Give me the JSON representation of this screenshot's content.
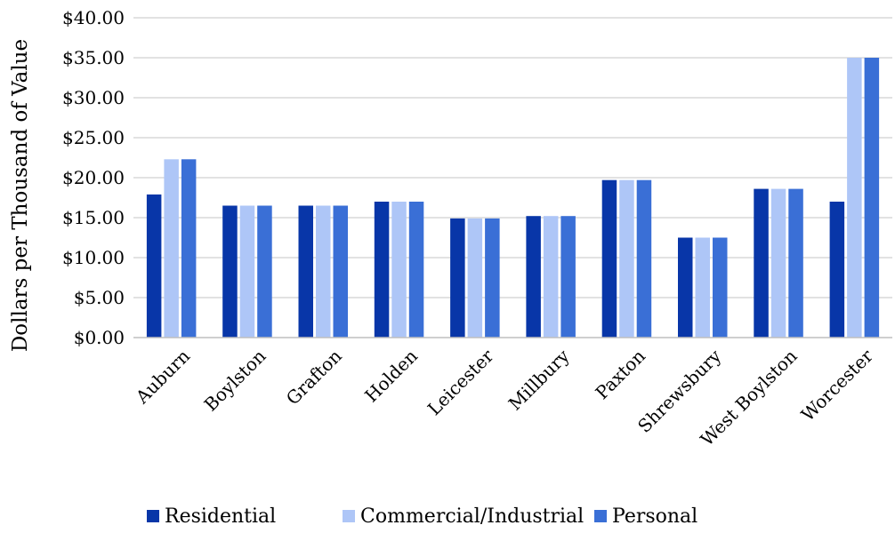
{
  "chart_data": {
    "type": "bar",
    "title": "",
    "xlabel": "",
    "ylabel": "Dollars per Thousand of Value",
    "ylim": [
      0,
      40
    ],
    "y_ticks": [
      0,
      5,
      10,
      15,
      20,
      25,
      30,
      35,
      40
    ],
    "y_tick_labels": [
      "$0.00",
      "$5.00",
      "$10.00",
      "$15.00",
      "$20.00",
      "$25.00",
      "$30.00",
      "$35.00",
      "$40.00"
    ],
    "grid": true,
    "legend_position": "bottom",
    "categories": [
      "Auburn",
      "Boylston",
      "Grafton",
      "Holden",
      "Leicester",
      "Millbury",
      "Paxton",
      "Shrewsbury",
      "West Boylston",
      "Worcester"
    ],
    "series": [
      {
        "name": "Residential",
        "color": "#0836a8",
        "values": [
          17.9,
          16.5,
          16.5,
          17.0,
          14.9,
          15.2,
          19.7,
          12.5,
          18.6,
          17.0
        ]
      },
      {
        "name": "Commercial/Industrial",
        "color": "#aec6f7",
        "values": [
          22.3,
          16.5,
          16.5,
          17.0,
          14.9,
          15.2,
          19.7,
          12.5,
          18.6,
          35.0
        ]
      },
      {
        "name": "Personal",
        "color": "#3a6fd6",
        "values": [
          22.3,
          16.5,
          16.5,
          17.0,
          14.9,
          15.2,
          19.7,
          12.5,
          18.6,
          35.0
        ]
      }
    ]
  }
}
